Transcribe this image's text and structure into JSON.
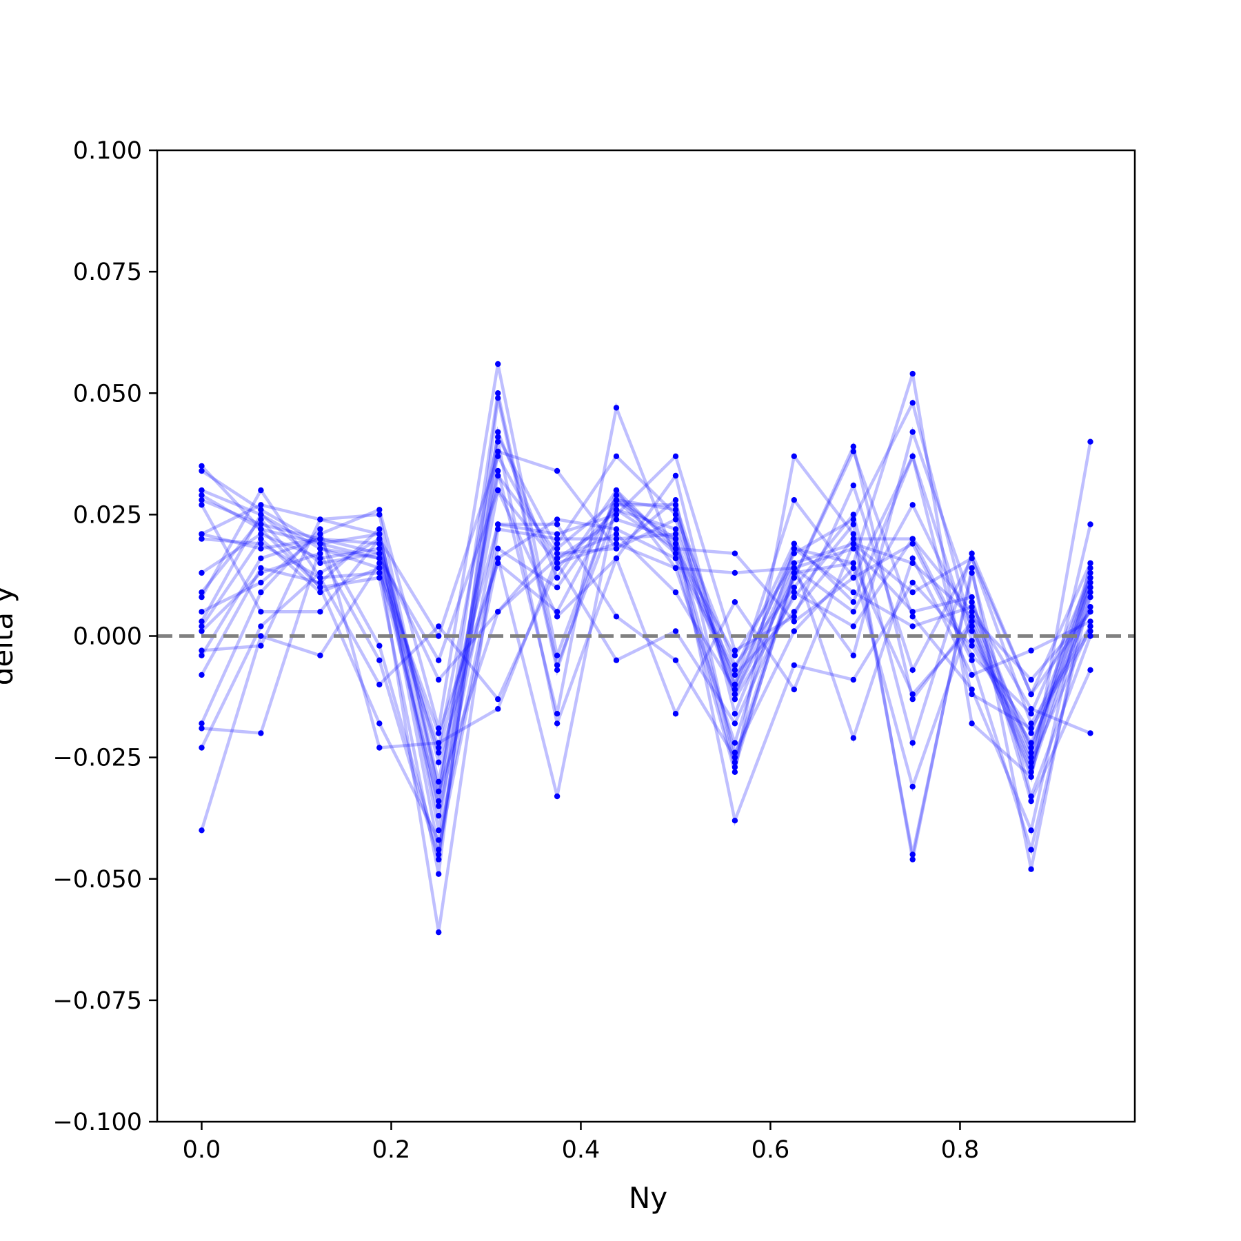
{
  "chart_data": {
    "type": "line",
    "title": "",
    "xlabel": "Ny",
    "ylabel": "delta y",
    "xlim": [
      -0.0469,
      0.9844
    ],
    "ylim": [
      -0.1,
      0.1
    ],
    "x_ticks": [
      0.0,
      0.2,
      0.4,
      0.6,
      0.8
    ],
    "x_tick_labels": [
      "0.0",
      "0.2",
      "0.4",
      "0.6",
      "0.8"
    ],
    "y_ticks": [
      0.1,
      0.075,
      0.05,
      0.025,
      0.0,
      -0.025,
      -0.05,
      -0.075,
      -0.1
    ],
    "y_tick_labels": [
      "0.100",
      "0.075",
      "0.050",
      "0.025",
      "0.000",
      "−0.025",
      "−0.050",
      "−0.075",
      "−0.100"
    ],
    "grid": false,
    "legend": "none",
    "reference_line": {
      "y": 0.0,
      "style": "dashed",
      "color": "#808080"
    },
    "line_color": "#0000ff",
    "line_alpha": 0.25,
    "x": [
      0.0,
      0.0625,
      0.125,
      0.1875,
      0.25,
      0.3125,
      0.375,
      0.4375,
      0.5,
      0.5625,
      0.625,
      0.6875,
      0.75,
      0.8125,
      0.875,
      0.9375
    ],
    "series": [
      {
        "values": [
          0.035,
          0.022,
          0.019,
          0.016,
          -0.023,
          0.041,
          0.018,
          0.028,
          0.02,
          -0.012,
          0.015,
          0.019,
          0.015,
          0.004,
          -0.025,
          0.012
        ]
      },
      {
        "values": [
          0.03,
          0.025,
          0.018,
          0.014,
          -0.034,
          0.05,
          -0.006,
          0.026,
          0.022,
          -0.01,
          0.017,
          0.024,
          0.048,
          0.001,
          -0.028,
          0.008
        ]
      },
      {
        "values": [
          0.028,
          0.023,
          0.02,
          -0.002,
          -0.045,
          0.038,
          0.034,
          0.018,
          0.028,
          -0.026,
          0.012,
          0.038,
          0.004,
          -0.011,
          -0.04,
          0.015
        ]
      },
      {
        "values": [
          0.021,
          0.027,
          0.024,
          0.021,
          -0.032,
          0.034,
          -0.016,
          0.047,
          0.016,
          -0.008,
          0.005,
          0.02,
          0.02,
          0.005,
          -0.023,
          0.01
        ]
      },
      {
        "values": [
          0.02,
          0.019,
          0.012,
          0.013,
          -0.024,
          0.023,
          0.021,
          0.025,
          0.037,
          -0.003,
          0.004,
          0.031,
          -0.007,
          0.016,
          -0.018,
          0.002
        ]
      },
      {
        "values": [
          0.013,
          0.021,
          0.016,
          0.018,
          -0.035,
          0.03,
          0.015,
          0.019,
          0.014,
          -0.022,
          0.018,
          0.015,
          -0.012,
          0.002,
          -0.029,
          0.04
        ]
      },
      {
        "values": [
          0.009,
          0.024,
          0.01,
          -0.018,
          -0.042,
          0.018,
          0.01,
          0.027,
          0.027,
          -0.01,
          0.028,
          0.012,
          0.037,
          -0.001,
          -0.02,
          0.011
        ]
      },
      {
        "values": [
          0.005,
          0.011,
          0.021,
          0.026,
          -0.019,
          0.056,
          -0.004,
          0.029,
          0.019,
          -0.027,
          0.013,
          -0.004,
          0.042,
          0.007,
          -0.024,
          0.014
        ]
      },
      {
        "values": [
          0.003,
          0.025,
          0.015,
          0.017,
          -0.009,
          0.005,
          0.019,
          0.037,
          0.025,
          -0.006,
          0.01,
          0.025,
          -0.022,
          0.017,
          -0.012,
          0.005
        ]
      },
      {
        "values": [
          0.001,
          0.013,
          0.017,
          -0.005,
          -0.046,
          0.04,
          -0.018,
          0.016,
          0.033,
          -0.016,
          0.014,
          0.005,
          0.027,
          0.002,
          -0.026,
          0.002
        ]
      },
      {
        "values": [
          -0.004,
          0.016,
          0.02,
          0.019,
          -0.026,
          0.016,
          0.024,
          0.022,
          0.016,
          -0.028,
          0.037,
          0.021,
          -0.045,
          0.013,
          -0.033,
          0.0
        ]
      },
      {
        "values": [
          -0.008,
          0.014,
          0.011,
          0.022,
          -0.04,
          0.042,
          0.012,
          0.03,
          0.018,
          0.017,
          0.003,
          0.012,
          0.019,
          -0.005,
          -0.044,
          0.009
        ]
      },
      {
        "values": [
          -0.018,
          0.009,
          0.022,
          -0.023,
          -0.022,
          -0.015,
          0.016,
          0.021,
          0.009,
          -0.011,
          0.018,
          0.009,
          0.002,
          0.006,
          -0.015,
          -0.02
        ]
      },
      {
        "values": [
          -0.023,
          0.002,
          0.013,
          0.02,
          -0.044,
          0.016,
          -0.033,
          0.028,
          0.026,
          -0.013,
          0.008,
          0.023,
          -0.046,
          0.014,
          -0.048,
          0.013
        ]
      },
      {
        "values": [
          -0.04,
          0.0,
          -0.004,
          0.015,
          -0.061,
          0.022,
          0.02,
          0.02,
          0.021,
          -0.038,
          -0.006,
          -0.009,
          0.011,
          -0.002,
          -0.022,
          0.006
        ]
      },
      {
        "values": [
          0.034,
          0.026,
          0.019,
          0.021,
          -0.03,
          0.033,
          0.017,
          0.018,
          0.024,
          -0.012,
          0.012,
          0.039,
          -0.013,
          0.003,
          -0.027,
          0.01
        ]
      },
      {
        "values": [
          0.029,
          0.022,
          0.01,
          0.012,
          -0.049,
          0.049,
          -0.007,
          0.03,
          0.014,
          0.013,
          0.014,
          0.018,
          0.005,
          0.008,
          -0.034,
          -0.007
        ]
      },
      {
        "values": [
          0.021,
          0.018,
          0.02,
          0.017,
          -0.037,
          0.023,
          0.023,
          0.004,
          -0.005,
          -0.025,
          0.013,
          0.015,
          0.054,
          -0.018,
          -0.029,
          0.023
        ]
      },
      {
        "values": [
          0.008,
          0.03,
          0.012,
          -0.01,
          0.002,
          -0.013,
          0.014,
          0.026,
          0.018,
          -0.004,
          0.015,
          -0.021,
          0.016,
          -0.008,
          -0.003,
          0.003
        ]
      },
      {
        "values": [
          0.002,
          0.02,
          0.009,
          0.014,
          -0.02,
          0.015,
          0.005,
          0.028,
          0.017,
          -0.007,
          0.019,
          0.007,
          0.037,
          -0.012,
          -0.019,
          0.001
        ]
      },
      {
        "values": [
          -0.003,
          -0.002,
          0.024,
          0.025,
          -0.032,
          0.005,
          0.016,
          0.024,
          0.02,
          -0.024,
          0.001,
          0.014,
          -0.031,
          0.004,
          -0.009,
          0.005
        ]
      },
      {
        "values": [
          -0.019,
          -0.02,
          0.018,
          0.016,
          -0.005,
          0.03,
          0.004,
          0.016,
          -0.016,
          0.007,
          -0.011,
          0.019,
          0.009,
          0.016,
          -0.012,
          0.015
        ]
      },
      {
        "values": [
          0.027,
          0.005,
          0.005,
          0.02,
          0.0,
          0.037,
          0.015,
          -0.005,
          0.001,
          -0.018,
          0.009,
          0.002,
          0.02,
          -0.004,
          -0.016,
          0.012
        ]
      }
    ]
  }
}
